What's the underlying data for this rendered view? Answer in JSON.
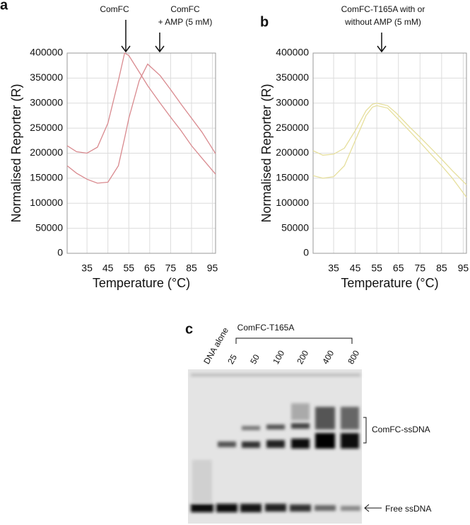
{
  "chart_data": [
    {
      "type": "line",
      "panel_label": "a",
      "x_label": "Temperature (°C)",
      "y_label": "Normalised Reporter (R)",
      "annotations": [
        [
          "ComFC"
        ],
        [
          "ComFC",
          "+ AMP (5 mM)"
        ]
      ],
      "x": [
        25.5,
        30,
        35,
        40,
        45,
        50,
        53,
        55,
        60,
        64,
        70,
        75,
        80,
        85,
        90,
        96.5
      ],
      "series": [
        {
          "color": "#d98a8f",
          "values": [
            215000,
            203000,
            200000,
            212000,
            260000,
            345000,
            400000,
            395000,
            362000,
            335000,
            300000,
            272000,
            245000,
            215000,
            190000,
            158000
          ]
        },
        {
          "color": "#d98a8f",
          "values": [
            175000,
            160000,
            148000,
            140000,
            142000,
            175000,
            230000,
            270000,
            345000,
            378000,
            355000,
            327000,
            298000,
            270000,
            242000,
            199000
          ]
        }
      ],
      "xlim": [
        25.5,
        96.5
      ],
      "xticks": [
        35,
        45,
        55,
        65,
        75,
        85,
        95
      ],
      "ylim": [
        0,
        400000
      ],
      "yticks": [
        0,
        50000,
        100000,
        150000,
        200000,
        250000,
        300000,
        350000,
        400000
      ],
      "grid": true
    },
    {
      "type": "line",
      "panel_label": "b",
      "x_label": "Temperature (°C)",
      "y_label": "Normalised Reporter (R)",
      "annotations": [
        [
          "ComFC-T165A with or",
          "without AMP (5 mM)"
        ]
      ],
      "x": [
        25.5,
        30,
        35,
        40,
        45,
        50,
        53,
        55,
        60,
        64,
        70,
        75,
        80,
        85,
        90,
        96.5
      ],
      "series": [
        {
          "color": "#e6df9c",
          "values": [
            205000,
            196000,
            198000,
            210000,
            245000,
            285000,
            298000,
            300000,
            295000,
            280000,
            253000,
            232000,
            210000,
            188000,
            165000,
            137000
          ]
        },
        {
          "color": "#e6df9c",
          "values": [
            155000,
            150000,
            153000,
            175000,
            225000,
            275000,
            292000,
            295000,
            290000,
            272000,
            245000,
            222000,
            198000,
            175000,
            150000,
            112000
          ]
        }
      ],
      "xlim": [
        25.5,
        96.5
      ],
      "xticks": [
        35,
        45,
        55,
        65,
        75,
        85,
        95
      ],
      "ylim": [
        0,
        400000
      ],
      "yticks": [
        0,
        50000,
        100000,
        150000,
        200000,
        250000,
        300000,
        350000,
        400000
      ],
      "grid": true
    }
  ],
  "gel": {
    "panel_label": "c",
    "group_label": "ComFC-T165A",
    "lanes": [
      "DNA alone",
      "25",
      "50",
      "100",
      "200",
      "400",
      "800"
    ],
    "bands": [
      "ComFC-ssDNA",
      "Free ssDNA"
    ]
  }
}
